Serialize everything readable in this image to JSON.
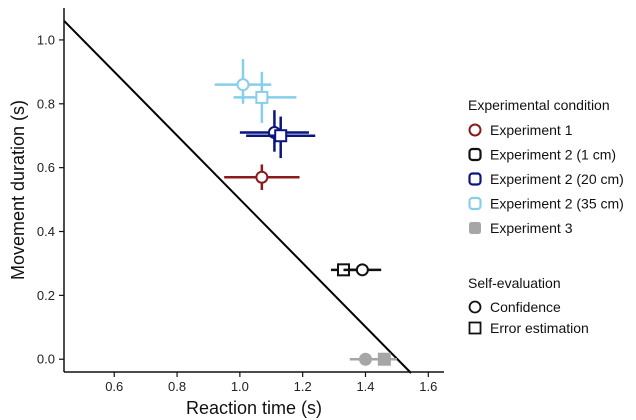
{
  "chart_data": {
    "type": "scatter",
    "xlabel": "Reaction time (s)",
    "ylabel": "Movement duration (s)",
    "xlim": [
      0.44,
      1.65
    ],
    "ylim": [
      -0.04,
      1.1
    ],
    "xticks": [
      "0.6",
      "0.8",
      "1.0",
      "1.2",
      "1.4",
      "1.6"
    ],
    "yticks": [
      "0.0",
      "0.2",
      "0.4",
      "0.6",
      "0.8",
      "1.0"
    ],
    "reference_line": {
      "x1": 0.44,
      "y1": 1.06,
      "x2": 1.55,
      "y2": -0.05,
      "color": "#000000"
    },
    "legend_condition": {
      "title": "Experimental condition",
      "items": [
        {
          "label": "Experiment 1",
          "color": "#8b1a1a",
          "marker": "open-circle"
        },
        {
          "label": "Experiment 2 (1 cm)",
          "color": "#111111",
          "marker": "open-octagon"
        },
        {
          "label": "Experiment 2 (20 cm)",
          "color": "#0a1580",
          "marker": "open-octagon"
        },
        {
          "label": "Experiment 2 (35 cm)",
          "color": "#87ceeb",
          "marker": "open-octagon"
        },
        {
          "label": "Experiment 3",
          "color": "#a6a6a6",
          "marker": "filled-square"
        }
      ]
    },
    "legend_evaluation": {
      "title": "Self-evaluation",
      "items": [
        {
          "label": "Confidence",
          "marker": "circle"
        },
        {
          "label": "Error estimation",
          "marker": "square"
        }
      ]
    },
    "points": [
      {
        "group": "Experiment 2 (35 cm)",
        "eval": "Confidence",
        "x": 1.01,
        "y": 0.86,
        "xerr": [
          0.92,
          1.1
        ],
        "yerr": [
          0.8,
          0.94
        ],
        "color": "#87ceeb",
        "filled": false
      },
      {
        "group": "Experiment 2 (35 cm)",
        "eval": "Error estimation",
        "x": 1.07,
        "y": 0.82,
        "xerr": [
          0.98,
          1.18
        ],
        "yerr": [
          0.74,
          0.9
        ],
        "color": "#87ceeb",
        "filled": false
      },
      {
        "group": "Experiment 2 (20 cm)",
        "eval": "Confidence",
        "x": 1.11,
        "y": 0.71,
        "xerr": [
          1.0,
          1.22
        ],
        "yerr": [
          0.65,
          0.78
        ],
        "color": "#0a1580",
        "filled": false
      },
      {
        "group": "Experiment 2 (20 cm)",
        "eval": "Error estimation",
        "x": 1.13,
        "y": 0.7,
        "xerr": [
          1.02,
          1.24
        ],
        "yerr": [
          0.63,
          0.76
        ],
        "color": "#0a1580",
        "filled": false
      },
      {
        "group": "Experiment 1",
        "eval": "Confidence",
        "x": 1.07,
        "y": 0.57,
        "xerr": [
          0.95,
          1.19
        ],
        "yerr": [
          0.53,
          0.61
        ],
        "color": "#8b1a1a",
        "filled": false
      },
      {
        "group": "Experiment 2 (1 cm)",
        "eval": "Error estimation",
        "x": 1.33,
        "y": 0.28,
        "xerr": [
          1.29,
          1.37
        ],
        "yerr": [
          0.28,
          0.28
        ],
        "color": "#111111",
        "filled": false
      },
      {
        "group": "Experiment 2 (1 cm)",
        "eval": "Confidence",
        "x": 1.39,
        "y": 0.28,
        "xerr": [
          1.33,
          1.45
        ],
        "yerr": [
          0.28,
          0.28
        ],
        "color": "#111111",
        "filled": false
      },
      {
        "group": "Experiment 3",
        "eval": "Confidence",
        "x": 1.4,
        "y": 0.0,
        "xerr": [
          1.35,
          1.45
        ],
        "yerr": [
          0.0,
          0.0
        ],
        "color": "#a6a6a6",
        "filled": true
      },
      {
        "group": "Experiment 3",
        "eval": "Error estimation",
        "x": 1.46,
        "y": 0.0,
        "xerr": [
          1.42,
          1.5
        ],
        "yerr": [
          0.0,
          0.0
        ],
        "color": "#a6a6a6",
        "filled": true
      }
    ]
  }
}
